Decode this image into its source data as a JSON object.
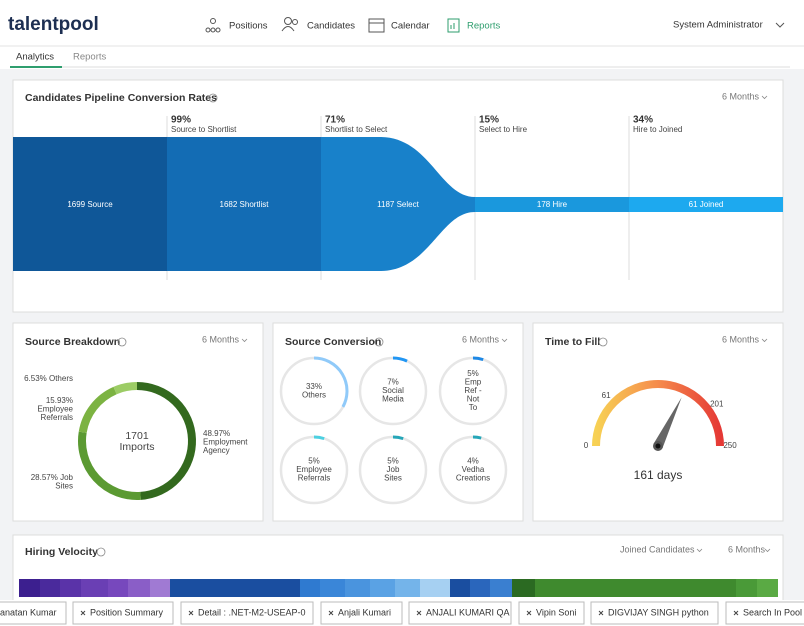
{
  "header": {
    "logo": "talentpool",
    "nav": [
      "Positions",
      "Candidates",
      "Calendar",
      "Reports"
    ],
    "user": "System Administrator"
  },
  "tabs": [
    "Analytics",
    "Reports"
  ],
  "pipeline": {
    "title": "Candidates Pipeline Conversion Rates",
    "period": "6 Months",
    "stages": [
      "1699 Source",
      "1682 Shortlist",
      "1187 Select",
      "178 Hire",
      "61 Joined"
    ],
    "conversions": [
      {
        "rate": "99%",
        "label": "Source to Shortlist"
      },
      {
        "rate": "71%",
        "label": "Shortlist to Select"
      },
      {
        "rate": "15%",
        "label": "Select to Hire"
      },
      {
        "rate": "34%",
        "label": "Hire to Joined"
      }
    ]
  },
  "source_breakdown": {
    "title": "Source Breakdown",
    "period": "6 Months",
    "center": [
      "1701",
      "Imports"
    ],
    "segments": [
      {
        "value": 48.97,
        "lines": [
          "48.97%",
          "Employment",
          "Agency"
        ],
        "color": "#33691e"
      },
      {
        "value": 28.57,
        "lines": [
          "28.57% Job",
          "Sites"
        ],
        "color": "#5b9a32"
      },
      {
        "value": 15.93,
        "lines": [
          "15.93%",
          "Employee",
          "Referrals"
        ],
        "color": "#7cb342"
      },
      {
        "value": 6.53,
        "lines": [
          "6.53% Others"
        ],
        "color": "#9ccc65"
      }
    ]
  },
  "source_conversion": {
    "title": "Source Conversion",
    "period": "6 Months",
    "items": [
      {
        "value": 33,
        "lines": [
          "33%",
          "Others"
        ],
        "color": "#90caf9"
      },
      {
        "value": 7,
        "lines": [
          "7%",
          "Social",
          "Media"
        ],
        "color": "#2196f3"
      },
      {
        "value": 5,
        "lines": [
          "5%",
          "Emp",
          "Ref -",
          "Not",
          "To"
        ],
        "color": "#1e88e5"
      },
      {
        "value": 5,
        "lines": [
          "5%",
          "Employee",
          "Referrals"
        ],
        "color": "#4dd0e1"
      },
      {
        "value": 5,
        "lines": [
          "5%",
          "Job",
          "Sites"
        ],
        "color": "#26a6b8"
      },
      {
        "value": 4,
        "lines": [
          "4%",
          "Vedha",
          "Creations"
        ],
        "color": "#26a6b8"
      }
    ]
  },
  "time_to_fill": {
    "title": "Time to Fill",
    "period": "6 Months",
    "range": [
      0,
      250
    ],
    "ticks": [
      0,
      61,
      201,
      250
    ],
    "value": 161,
    "value_label": "161 days"
  },
  "hiring_velocity": {
    "title": "Hiring Velocity",
    "filter": "Joined Candidates",
    "period": "6 Months"
  },
  "open_tabs": [
    "anatan Kumar",
    "Position Summary",
    "Detail : .NET-M2-USEAP-0",
    "Anjali Kumari",
    "ANJALI KUMARI QA",
    "Vipin Soni",
    "DIGVIJAY SINGH python",
    "Search In Pool"
  ]
}
